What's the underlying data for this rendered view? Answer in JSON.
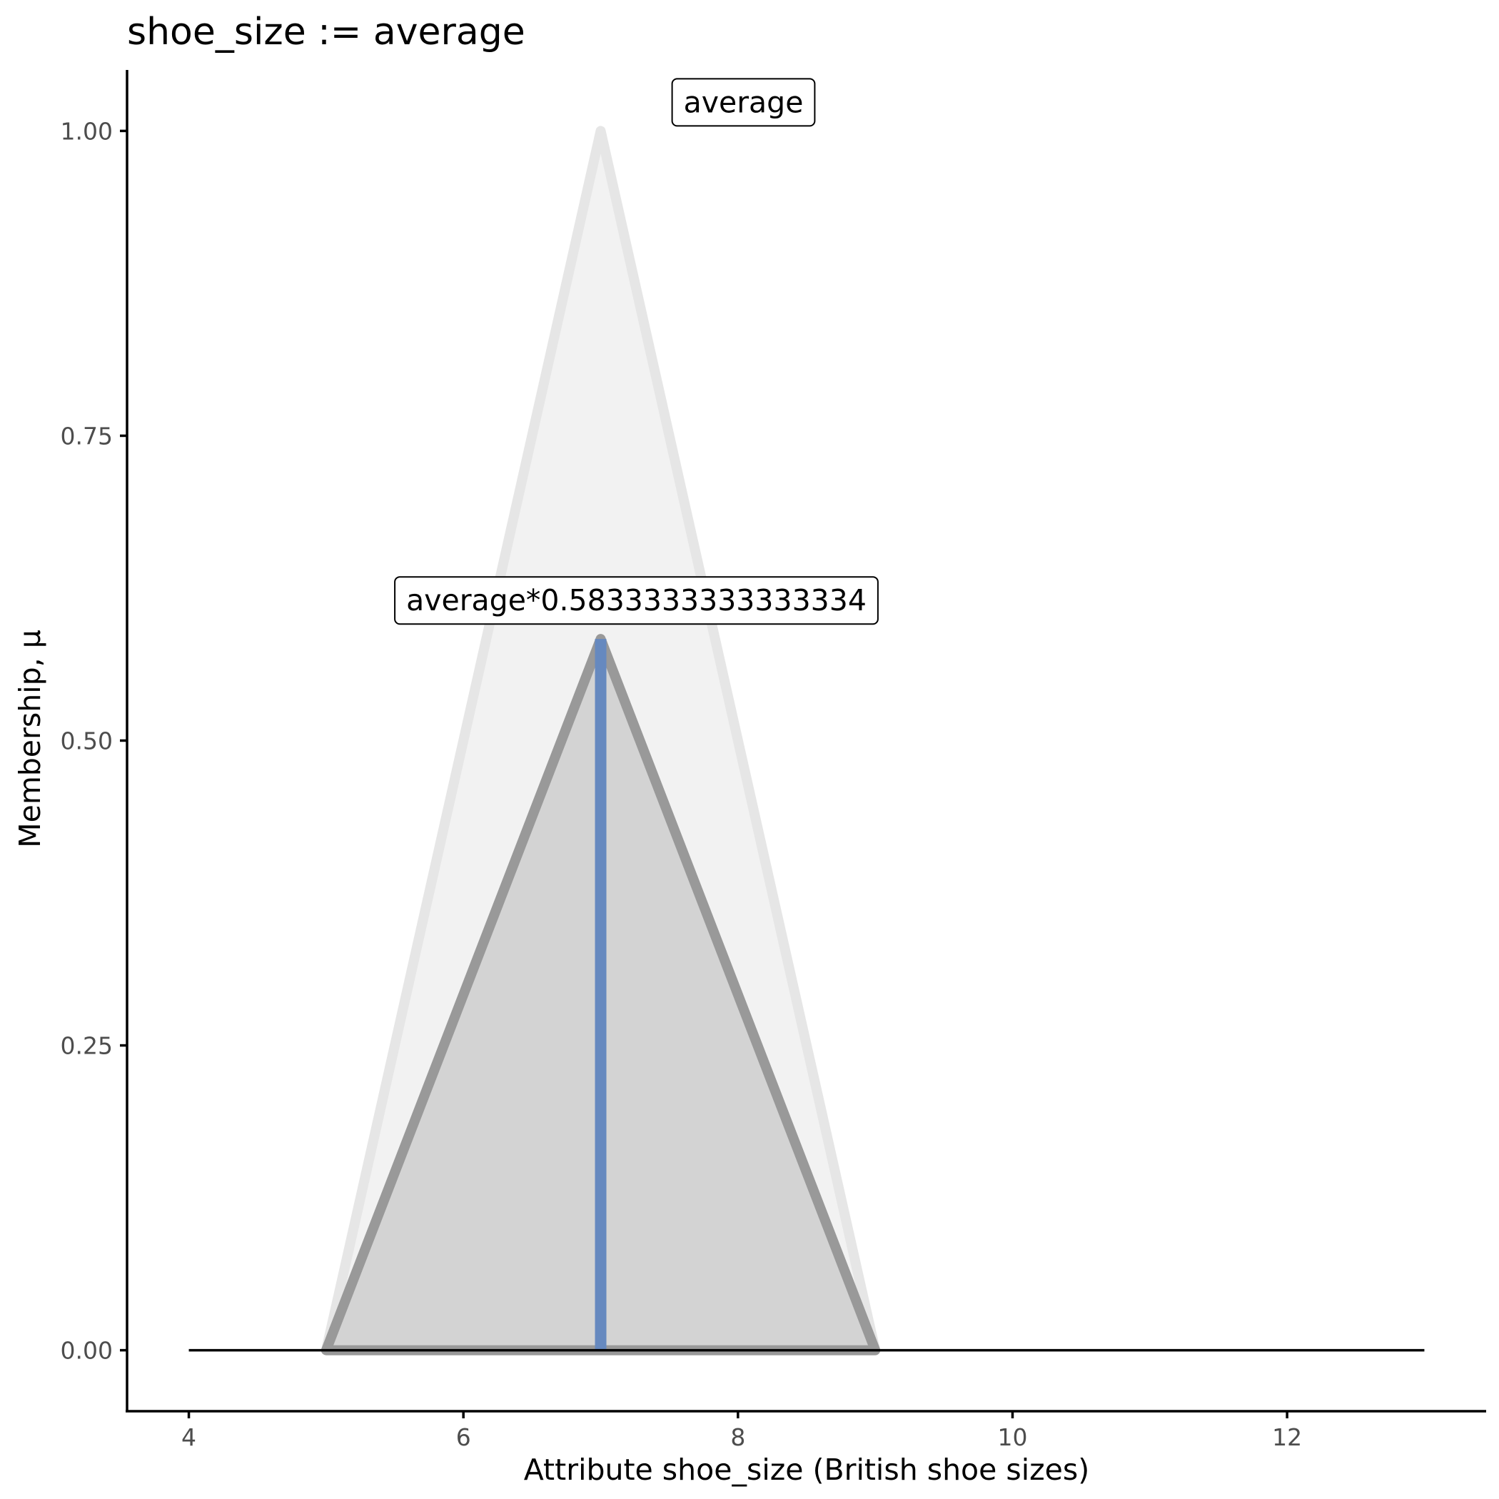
{
  "chart_data": {
    "type": "area",
    "title": "shoe_size := average",
    "xlabel": "Attribute shoe_size (British shoe sizes)",
    "ylabel": "Membership, μ",
    "xlim": [
      3.55,
      13.45
    ],
    "ylim": [
      -0.05,
      1.05
    ],
    "x_ticks": [
      4,
      6,
      8,
      10,
      12
    ],
    "x_tick_labels": [
      "4",
      "6",
      "8",
      "10",
      "12"
    ],
    "y_ticks": [
      0,
      0.25,
      0.5,
      0.75,
      1.0
    ],
    "y_tick_labels": [
      "0.00",
      "0.25",
      "0.50",
      "0.75",
      "1.00"
    ],
    "grid": false,
    "series": [
      {
        "x": [
          5,
          7,
          9
        ],
        "y": [
          0,
          1,
          0
        ],
        "fill": "#f2f2f2",
        "stroke": "#e6e6e6"
      },
      {
        "x": [
          5,
          7,
          9
        ],
        "y": [
          0,
          0.5833333333333334,
          0
        ],
        "fill": "#d3d3d3",
        "stroke": "#999999"
      }
    ],
    "baseline": {
      "x": [
        4,
        13
      ],
      "y": 0,
      "color": "#000000"
    },
    "marker": {
      "x": 7,
      "y_from": 0,
      "y_to": 0.5833333333333334,
      "color": "#6689bf"
    },
    "annotations": [
      {
        "text": "average",
        "x": 7,
        "y": 1.0
      },
      {
        "text": "average*0.5833333333333334",
        "x": 7,
        "y": 0.5833333333333334
      }
    ]
  }
}
